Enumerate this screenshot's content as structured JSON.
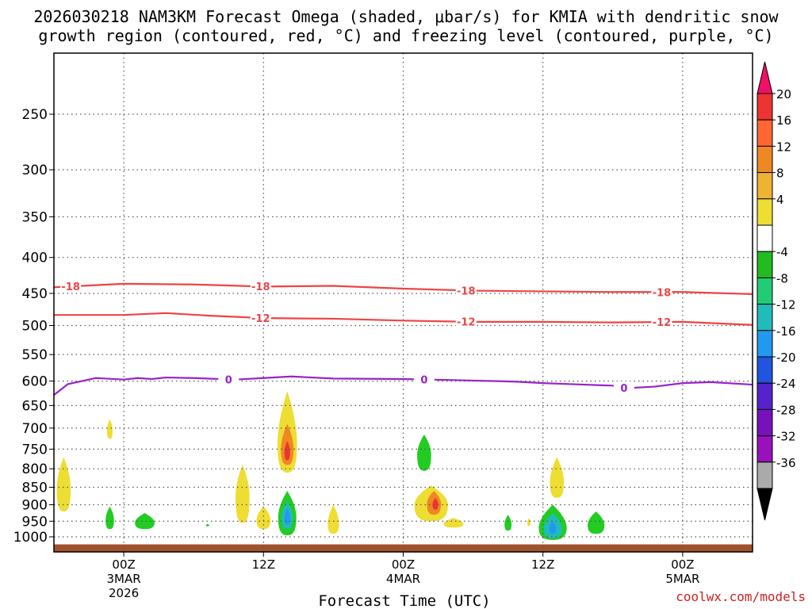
{
  "title_lines": [
    "2026030218 NAM3KM Forecast Omega (shaded, μbar/s) for KMIA with dendritic snow",
    "growth region (contoured, red, °C) and freezing level (contoured, purple, °C)"
  ],
  "credit": "coolwx.com/models",
  "chart_data": {
    "type": "heatmap",
    "xlabel": "Forecast Time (UTC)",
    "ylabel": "",
    "x_range_hours_from_00Z_3MAR": [
      -5,
      45
    ],
    "y_range_hpa": [
      1040,
      200
    ],
    "y_scale": "log",
    "y_ticks": [
      250,
      300,
      350,
      400,
      450,
      500,
      550,
      600,
      650,
      700,
      750,
      800,
      850,
      900,
      950,
      1000
    ],
    "x_ticks": [
      {
        "hour": 0,
        "lines": [
          "00Z",
          "3MAR",
          "2026"
        ]
      },
      {
        "hour": 10,
        "lines": [
          "12Z"
        ]
      },
      {
        "hour": 20,
        "lines": [
          "00Z",
          "4MAR"
        ]
      },
      {
        "hour": 30,
        "lines": [
          "12Z"
        ]
      },
      {
        "hour": 40,
        "lines": [
          "00Z",
          "5MAR"
        ]
      }
    ],
    "grid": true,
    "colorbar": {
      "labels": [
        "20",
        "16",
        "12",
        "8",
        "4",
        "-4",
        "-8",
        "-12",
        "-16",
        "-20",
        "-24",
        "-28",
        "-32",
        "-36"
      ],
      "colors": [
        "#ee1166",
        "#ee3333",
        "#ff6633",
        "#ee8822",
        "#eeb333",
        "#eedd33",
        "#ffffff",
        "#22bb22",
        "#22cc77",
        "#22bbbb",
        "#2299ee",
        "#2255dd",
        "#5522cc",
        "#7711bb",
        "#9911bb",
        "#aaaaaa",
        "#000000"
      ]
    },
    "contours": [
      {
        "label": "-18",
        "color": "#ee4444",
        "points": [
          [
            -5,
            441
          ],
          [
            0,
            436
          ],
          [
            5,
            437
          ],
          [
            10,
            440
          ],
          [
            15,
            439
          ],
          [
            20,
            443
          ],
          [
            25,
            446
          ],
          [
            30,
            447
          ],
          [
            35,
            448
          ],
          [
            40,
            448
          ],
          [
            45,
            451
          ]
        ],
        "label_at": [
          -3.8,
          9.8,
          24.5,
          38.5
        ]
      },
      {
        "label": "-12",
        "color": "#ee4444",
        "points": [
          [
            -5,
            483
          ],
          [
            0,
            483
          ],
          [
            3,
            480
          ],
          [
            6,
            484
          ],
          [
            10,
            488
          ],
          [
            15,
            489
          ],
          [
            20,
            492
          ],
          [
            25,
            494
          ],
          [
            30,
            494
          ],
          [
            35,
            495
          ],
          [
            40,
            494
          ],
          [
            45,
            499
          ]
        ],
        "label_at": [
          9.8,
          24.5,
          38.5
        ]
      },
      {
        "label": "0",
        "color": "#9922cc",
        "points": [
          [
            -5,
            628
          ],
          [
            -4,
            606
          ],
          [
            -2,
            594
          ],
          [
            0,
            597
          ],
          [
            1,
            594
          ],
          [
            2,
            596
          ],
          [
            3,
            593
          ],
          [
            5,
            594
          ],
          [
            8,
            597
          ],
          [
            10,
            594
          ],
          [
            12,
            591
          ],
          [
            15,
            595
          ],
          [
            20,
            596
          ],
          [
            22,
            597
          ],
          [
            25,
            599
          ],
          [
            28,
            601
          ],
          [
            30,
            604
          ],
          [
            32,
            606
          ],
          [
            35,
            609
          ],
          [
            36,
            614
          ],
          [
            38,
            611
          ],
          [
            40,
            604
          ],
          [
            42,
            602
          ],
          [
            45,
            607
          ]
        ],
        "label_at": [
          7.5,
          21.5,
          35.8
        ]
      }
    ],
    "shaded_regions": [
      {
        "color": "#eedd33",
        "center": [
          -4.3,
          840
        ],
        "rx": 0.5,
        "top": 770,
        "bottom": 920
      },
      {
        "color": "#eedd33",
        "center": [
          -1,
          700
        ],
        "rx": 0.2,
        "top": 680,
        "bottom": 725
      },
      {
        "color": "#22cc22",
        "center": [
          -1,
          940
        ],
        "rx": 0.3,
        "top": 905,
        "bottom": 975
      },
      {
        "color": "#22cc22",
        "center": [
          1.5,
          950
        ],
        "rx": 0.7,
        "top": 925,
        "bottom": 975
      },
      {
        "color": "#22cc22",
        "center": [
          6,
          962
        ],
        "rx": 0.1,
        "top": 958,
        "bottom": 966
      },
      {
        "color": "#eedd33",
        "center": [
          8.5,
          860
        ],
        "rx": 0.5,
        "top": 790,
        "bottom": 955
      },
      {
        "color": "#eedd33",
        "center": [
          10,
          940
        ],
        "rx": 0.5,
        "top": 905,
        "bottom": 975
      },
      {
        "color": "#eedd33",
        "center": [
          11.7,
          720
        ],
        "rx": 0.7,
        "top": 620,
        "bottom": 810
      },
      {
        "color": "#ee8822",
        "center": [
          11.7,
          740
        ],
        "rx": 0.45,
        "top": 690,
        "bottom": 790
      },
      {
        "color": "#ee3333",
        "center": [
          11.7,
          752
        ],
        "rx": 0.2,
        "top": 730,
        "bottom": 778
      },
      {
        "color": "#22cc22",
        "center": [
          11.7,
          925
        ],
        "rx": 0.65,
        "top": 860,
        "bottom": 995
      },
      {
        "color": "#22bbbb",
        "center": [
          11.7,
          930
        ],
        "rx": 0.4,
        "top": 890,
        "bottom": 975
      },
      {
        "color": "#2299ee",
        "center": [
          11.7,
          935
        ],
        "rx": 0.2,
        "top": 910,
        "bottom": 960
      },
      {
        "color": "#eedd33",
        "center": [
          15,
          950
        ],
        "rx": 0.4,
        "top": 900,
        "bottom": 990
      },
      {
        "color": "#22cc22",
        "center": [
          21.5,
          755
        ],
        "rx": 0.5,
        "top": 715,
        "bottom": 805
      },
      {
        "color": "#eedd33",
        "center": [
          22,
          890
        ],
        "rx": 1.2,
        "top": 845,
        "bottom": 950
      },
      {
        "color": "#ee8822",
        "center": [
          22.2,
          890
        ],
        "rx": 0.5,
        "top": 860,
        "bottom": 930
      },
      {
        "color": "#ee3333",
        "center": [
          22.3,
          895
        ],
        "rx": 0.2,
        "top": 880,
        "bottom": 915
      },
      {
        "color": "#eedd33",
        "center": [
          23.6,
          955
        ],
        "rx": 0.7,
        "top": 940,
        "bottom": 970
      },
      {
        "color": "#22cc22",
        "center": [
          27.5,
          955
        ],
        "rx": 0.25,
        "top": 930,
        "bottom": 980
      },
      {
        "color": "#eedd33",
        "center": [
          29,
          952
        ],
        "rx": 0.1,
        "top": 940,
        "bottom": 965
      },
      {
        "color": "#eedd33",
        "center": [
          31,
          825
        ],
        "rx": 0.5,
        "top": 770,
        "bottom": 880
      },
      {
        "color": "#22cc22",
        "center": [
          30.7,
          960
        ],
        "rx": 1.0,
        "top": 900,
        "bottom": 1010
      },
      {
        "color": "#22bbbb",
        "center": [
          30.7,
          965
        ],
        "rx": 0.65,
        "top": 925,
        "bottom": 1005
      },
      {
        "color": "#2299ee",
        "center": [
          30.7,
          968
        ],
        "rx": 0.25,
        "top": 950,
        "bottom": 990
      },
      {
        "color": "#22cc22",
        "center": [
          33.8,
          955
        ],
        "rx": 0.6,
        "top": 920,
        "bottom": 990
      }
    ],
    "ground": {
      "color": "#a0522d",
      "top_hpa": 1025
    }
  }
}
